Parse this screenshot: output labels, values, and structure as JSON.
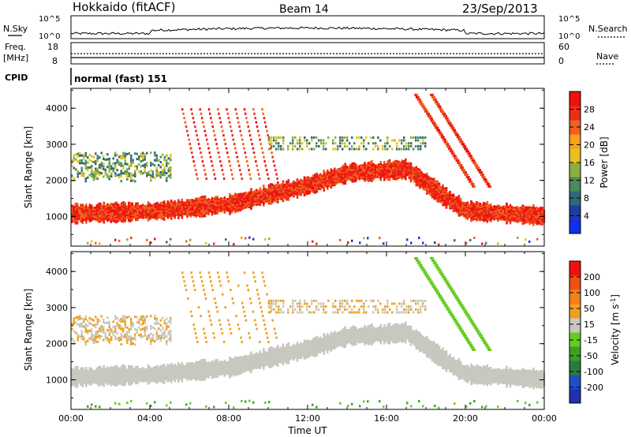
{
  "header": {
    "station": "Hokkaido (fitACF)",
    "beam": "Beam 14",
    "date": "23/Sep/2013"
  },
  "strips": {
    "nsky": {
      "label": "N.Sky",
      "ticks": [
        "10^5",
        "10^0"
      ]
    },
    "nsearch": {
      "label": "N.Search",
      "ticks": [
        "10^5",
        "10^0"
      ]
    },
    "freq": {
      "label_line1": "Freq.",
      "label_line2": "[MHz]",
      "ticks": [
        "18",
        "8"
      ]
    },
    "nave": {
      "label": "Nave",
      "ticks": [
        "60",
        "0"
      ]
    },
    "cpid": {
      "label": "CPID",
      "text": "normal (fast) 151"
    }
  },
  "chart_data": [
    {
      "type": "heatmap",
      "quantity": "Power",
      "ylabel": "Slant Range [km]",
      "xlabel": "Time UT",
      "x_ticks": [
        "00:00",
        "04:00",
        "08:00",
        "12:00",
        "16:00",
        "20:00",
        "00:00"
      ],
      "x_range_hours": [
        0,
        24
      ],
      "y_ticks": [
        1000,
        2000,
        3000,
        4000
      ],
      "y_range": [
        180,
        4550
      ],
      "colorbar": {
        "label": "Power [dB]",
        "ticks": [
          "4",
          "8",
          "12",
          "16",
          "20",
          "24",
          "28"
        ],
        "colors": [
          "#1030f0",
          "#203ca0",
          "#2e6a78",
          "#4a8a5a",
          "#8cb03c",
          "#e8c020",
          "#f8a020",
          "#f06020",
          "#e83018",
          "#f01010"
        ]
      },
      "main_echo_band_km": [
        [
          0,
          1120
        ],
        [
          4,
          1180
        ],
        [
          8,
          1380
        ],
        [
          10,
          1650
        ],
        [
          12,
          1900
        ],
        [
          14,
          2250
        ],
        [
          17,
          2350
        ],
        [
          19,
          1550
        ],
        [
          20,
          1200
        ],
        [
          24,
          1050
        ]
      ]
    },
    {
      "type": "heatmap",
      "quantity": "Velocity",
      "ylabel": "Slant Range [km]",
      "xlabel": "Time UT",
      "x_ticks": [
        "00:00",
        "04:00",
        "08:00",
        "12:00",
        "16:00",
        "20:00",
        "00:00"
      ],
      "x_range_hours": [
        0,
        24
      ],
      "y_ticks": [
        1000,
        2000,
        3000,
        4000
      ],
      "y_range": [
        180,
        4550
      ],
      "colorbar": {
        "label": "Velocity [m s",
        "label_exp": "-1",
        "label_close": "]",
        "ticks": [
          "200",
          "100",
          "50",
          "15",
          "-15",
          "-50",
          "-100",
          "-200"
        ],
        "colors": [
          "#2030b0",
          "#2050c0",
          "#2a7a40",
          "#3aa028",
          "#66cc22",
          "#c8c8c0",
          "#f0a020",
          "#f08020",
          "#f05010",
          "#f01010"
        ]
      }
    }
  ],
  "colors": {
    "ground_scatter": "#c8c8c0",
    "frame": "#000000"
  }
}
